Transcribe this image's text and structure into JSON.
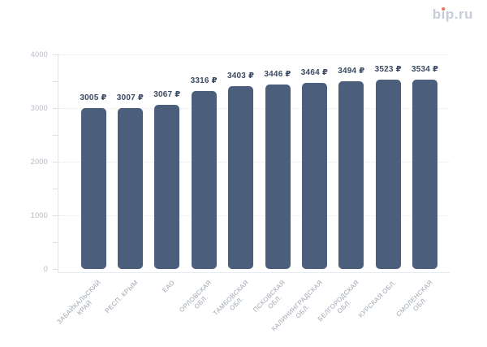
{
  "logo": {
    "text": "bip.ru",
    "color": "#c7ccd9",
    "dot_color": "#ef7455"
  },
  "chart_data": {
    "type": "bar",
    "title": "",
    "xlabel": "",
    "ylabel": "",
    "categories": [
      "ЗАБАЙКАЛЬСКИЙ\nКРАЙ",
      "РЕСП. КРЫМ",
      "ЕАО",
      "ОРЛОВСКАЯ\nОБЛ.",
      "ТАМБОВСКАЯ\nОБЛ.",
      "ПСКОВСКАЯ\nОБЛ.",
      "КАЛИНИНГРАДСКАЯ\nОБЛ.",
      "БЕЛГОРОДСКАЯ\nОБЛ.",
      "КУРСКАЯ ОБЛ.",
      "СМОЛЕНСКАЯ\nОБЛ."
    ],
    "values": [
      3005,
      3007,
      3067,
      3316,
      3403,
      3446,
      3464,
      3494,
      3523,
      3534
    ],
    "value_suffix": "₽",
    "value_labels": [
      "3005 ₽",
      "3007 ₽",
      "3067 ₽",
      "3316 ₽",
      "3403 ₽",
      "3446 ₽",
      "3464 ₽",
      "3494 ₽",
      "3523 ₽",
      "3534 ₽"
    ],
    "ylim": [
      0,
      4000
    ],
    "y_ticks": [
      0,
      1000,
      2000,
      3000,
      4000
    ],
    "y_minor_tick_step": 500,
    "grid": "horizontal-dotted",
    "legend": "none",
    "bar_color": "#4b5e7c",
    "value_label_color": "#3a4a63",
    "y_tick_label_color": "#b2b9c4",
    "x_tick_label_color": "#9da6b2"
  }
}
